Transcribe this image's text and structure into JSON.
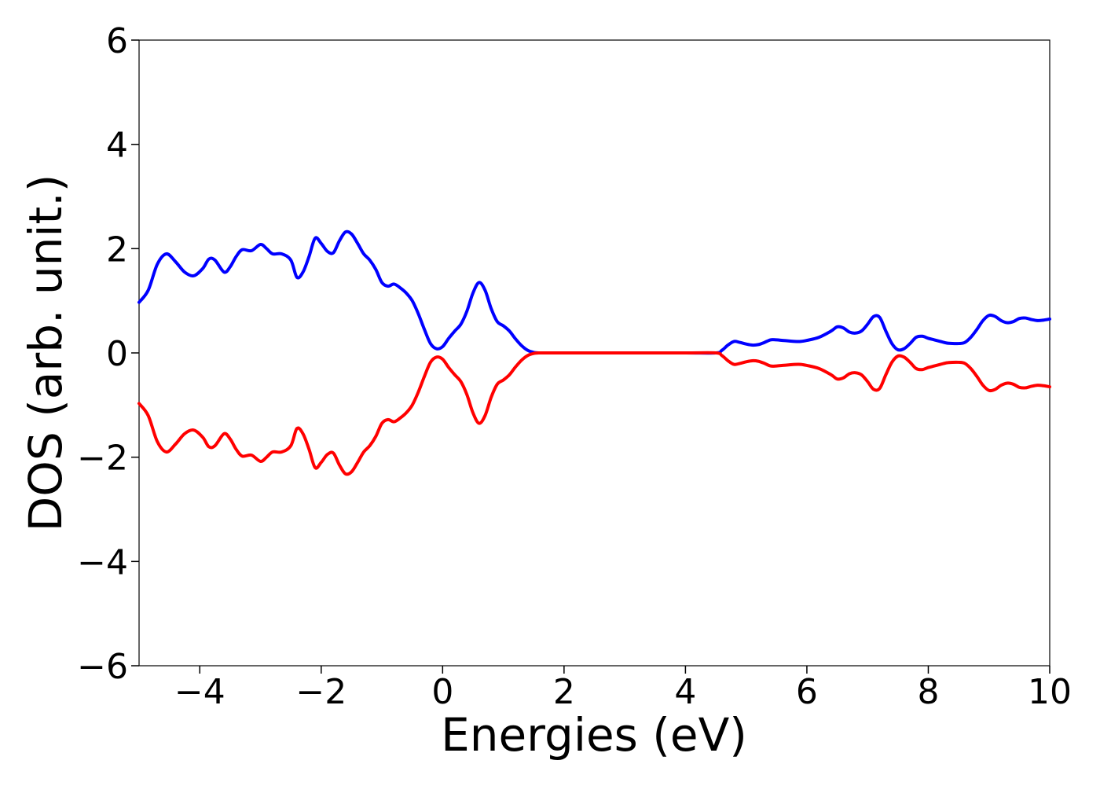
{
  "chart_data": {
    "type": "line",
    "title": "",
    "xlabel": "Energies (eV)",
    "ylabel": "DOS (arb. unit.)",
    "xlim": [
      -5,
      10
    ],
    "ylim": [
      -6,
      6
    ],
    "x_ticks": [
      -4,
      -2,
      0,
      2,
      4,
      6,
      8,
      10
    ],
    "x_tick_labels": [
      "−4",
      "−2",
      "0",
      "2",
      "4",
      "6",
      "8",
      "10"
    ],
    "y_ticks": [
      -6,
      -4,
      -2,
      0,
      2,
      4,
      6
    ],
    "y_tick_labels": [
      "−6",
      "−4",
      "−2",
      "0",
      "2",
      "4",
      "6"
    ],
    "grid": false,
    "legend": "none",
    "colors": {
      "spin_up": "#0000ff",
      "spin_down": "#ff0000"
    },
    "series": [
      {
        "color": "#0000ff",
        "x": [
          -5.0,
          -4.85,
          -4.7,
          -4.55,
          -4.4,
          -4.25,
          -4.1,
          -3.95,
          -3.85,
          -3.75,
          -3.6,
          -3.5,
          -3.4,
          -3.3,
          -3.15,
          -3.0,
          -2.9,
          -2.8,
          -2.65,
          -2.5,
          -2.4,
          -2.3,
          -2.2,
          -2.1,
          -2.0,
          -1.9,
          -1.8,
          -1.7,
          -1.6,
          -1.5,
          -1.4,
          -1.3,
          -1.2,
          -1.1,
          -1.0,
          -0.9,
          -0.8,
          -0.7,
          -0.6,
          -0.5,
          -0.4,
          -0.3,
          -0.2,
          -0.1,
          0.0,
          0.1,
          0.2,
          0.3,
          0.4,
          0.5,
          0.6,
          0.7,
          0.8,
          0.9,
          1.0,
          1.1,
          1.2,
          1.3,
          1.4,
          1.5,
          1.6,
          1.7,
          1.8,
          2.0,
          3.0,
          4.0,
          4.5,
          4.6,
          4.7,
          4.8,
          4.9,
          5.0,
          5.1,
          5.2,
          5.3,
          5.4,
          5.5,
          5.6,
          5.7,
          5.8,
          5.9,
          6.0,
          6.2,
          6.4,
          6.5,
          6.6,
          6.7,
          6.8,
          6.9,
          7.0,
          7.1,
          7.2,
          7.3,
          7.4,
          7.5,
          7.6,
          7.7,
          7.8,
          7.9,
          8.0,
          8.1,
          8.2,
          8.3,
          8.4,
          8.5,
          8.6,
          8.7,
          8.8,
          8.9,
          9.0,
          9.1,
          9.2,
          9.3,
          9.4,
          9.5,
          9.6,
          9.7,
          9.8,
          9.9,
          10.0
        ],
        "y": [
          0.97,
          1.2,
          1.7,
          1.9,
          1.75,
          1.55,
          1.48,
          1.62,
          1.8,
          1.78,
          1.55,
          1.65,
          1.85,
          1.98,
          1.96,
          2.08,
          2.0,
          1.9,
          1.9,
          1.78,
          1.45,
          1.55,
          1.85,
          2.2,
          2.1,
          1.95,
          1.92,
          2.15,
          2.32,
          2.28,
          2.1,
          1.9,
          1.78,
          1.6,
          1.35,
          1.28,
          1.32,
          1.25,
          1.15,
          1.0,
          0.75,
          0.45,
          0.18,
          0.08,
          0.12,
          0.28,
          0.42,
          0.55,
          0.8,
          1.15,
          1.35,
          1.2,
          0.85,
          0.6,
          0.52,
          0.42,
          0.27,
          0.14,
          0.05,
          0.01,
          0.0,
          0.0,
          0.0,
          0.0,
          0.0,
          0.0,
          0.0,
          0.05,
          0.15,
          0.22,
          0.2,
          0.17,
          0.15,
          0.16,
          0.2,
          0.25,
          0.25,
          0.24,
          0.23,
          0.22,
          0.22,
          0.24,
          0.3,
          0.42,
          0.5,
          0.48,
          0.4,
          0.38,
          0.42,
          0.55,
          0.7,
          0.68,
          0.42,
          0.18,
          0.06,
          0.08,
          0.18,
          0.3,
          0.32,
          0.28,
          0.25,
          0.22,
          0.19,
          0.18,
          0.18,
          0.2,
          0.3,
          0.45,
          0.62,
          0.72,
          0.7,
          0.62,
          0.58,
          0.6,
          0.66,
          0.67,
          0.64,
          0.62,
          0.63,
          0.65
        ],
        "x_label_pos_note": ""
      },
      {
        "color": "#ff0000",
        "mirror_of_first_series": true
      }
    ]
  }
}
